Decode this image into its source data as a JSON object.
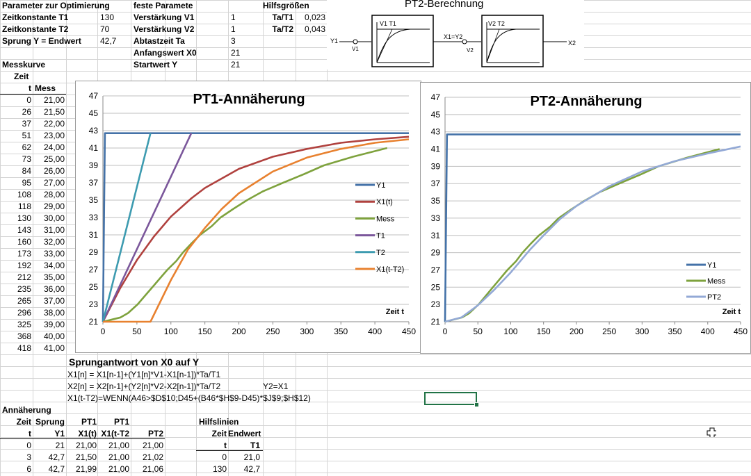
{
  "top": {
    "param_header": "Parameter zur Optimierung",
    "fixed_header": "feste Paramete",
    "help_header": "Hilfsgrößen",
    "params": [
      {
        "label": "Zeitkonstante T1",
        "value": "130"
      },
      {
        "label": "Zeitkonstante T2",
        "value": "70"
      },
      {
        "label": "Sprung Y = Endwert",
        "value": "42,7"
      }
    ],
    "fixed": [
      {
        "label": "Verstärkung V1",
        "value": "1"
      },
      {
        "label": "Verstärkung V2",
        "value": "1"
      },
      {
        "label": "Abtastzeit Ta",
        "value": "3"
      },
      {
        "label": "Anfangswert X0",
        "value": "21"
      },
      {
        "label": "Startwert Y",
        "value": "21"
      }
    ],
    "help": [
      {
        "label": "Ta/T1",
        "value": "0,023"
      },
      {
        "label": "Ta/T2",
        "value": "0,043"
      }
    ]
  },
  "diagram": {
    "title": "PT2-Berechnung",
    "in_label": "Y1",
    "v1_label": "V1",
    "block1_label": "V1  T1",
    "mid_label": "X1=Y2",
    "v2_label": "V2",
    "block2_label": "V2  T2",
    "out_label": "X2"
  },
  "messkurve": {
    "title": "Messkurve",
    "col_time_head1": "Zeit",
    "col_time_head2": "t",
    "col_mess_head": "Mess",
    "rows": [
      {
        "t": "0",
        "v": "21,00"
      },
      {
        "t": "26",
        "v": "21,50"
      },
      {
        "t": "37",
        "v": "22,00"
      },
      {
        "t": "51",
        "v": "23,00"
      },
      {
        "t": "62",
        "v": "24,00"
      },
      {
        "t": "73",
        "v": "25,00"
      },
      {
        "t": "84",
        "v": "26,00"
      },
      {
        "t": "95",
        "v": "27,00"
      },
      {
        "t": "108",
        "v": "28,00"
      },
      {
        "t": "118",
        "v": "29,00"
      },
      {
        "t": "130",
        "v": "30,00"
      },
      {
        "t": "143",
        "v": "31,00"
      },
      {
        "t": "160",
        "v": "32,00"
      },
      {
        "t": "173",
        "v": "33,00"
      },
      {
        "t": "192",
        "v": "34,00"
      },
      {
        "t": "212",
        "v": "35,00"
      },
      {
        "t": "235",
        "v": "36,00"
      },
      {
        "t": "265",
        "v": "37,00"
      },
      {
        "t": "296",
        "v": "38,00"
      },
      {
        "t": "325",
        "v": "39,00"
      },
      {
        "t": "368",
        "v": "40,00"
      },
      {
        "t": "418",
        "v": "41,00"
      }
    ]
  },
  "formulas": {
    "title": "Sprungantwort von X0 auf Y",
    "line1": "X1[n] = X1[n-1]+(Y1[n]*V1-X1[n-1])*Ta/T1",
    "line2": "X2[n] = X2[n-1]+(Y2[n]*V2-X2[n-1])*Ta/T2",
    "line2_note": "Y2=X1",
    "line3": "X1(t-T2)=WENN(A46>$D$10;D45+(B46*$H$9-D45)*$J$9;$H$12)"
  },
  "annaeherung": {
    "title": "Annäherung",
    "head1": [
      "Zeit",
      "Sprung",
      "PT1",
      "PT1",
      ""
    ],
    "head2": [
      "t",
      "Y1",
      "X1(t)",
      "X1(t-T2",
      "PT2"
    ],
    "rows": [
      [
        "0",
        "21",
        "21,00",
        "21,00",
        "21,00"
      ],
      [
        "3",
        "42,7",
        "21,50",
        "21,00",
        "21,02"
      ],
      [
        "6",
        "42,7",
        "21,99",
        "21,00",
        "21,06"
      ]
    ]
  },
  "hilfslinien": {
    "title": "Hilfslinien",
    "head1": [
      "Zeit",
      "Endwert"
    ],
    "head2": [
      "t",
      "T1"
    ],
    "rows": [
      [
        "0",
        "21,0"
      ],
      [
        "130",
        "42,7"
      ]
    ]
  },
  "colors": {
    "y1": "#4472a8",
    "x1": "#b0413e",
    "mess": "#7ea23d",
    "t1": "#7b579b",
    "t2": "#3d9bb0",
    "x1t2": "#e8812f",
    "pt2": "#93a9d6",
    "selection": "#217346"
  },
  "chart_data": [
    {
      "type": "line",
      "title": "PT1-Annäherung",
      "xlabel": "Zeit t",
      "ylabel": "",
      "xlim": [
        0,
        450
      ],
      "ylim": [
        21,
        47
      ],
      "xticks": [
        0,
        50,
        100,
        150,
        200,
        250,
        300,
        350,
        400,
        450
      ],
      "yticks": [
        21,
        23,
        25,
        27,
        29,
        31,
        33,
        35,
        37,
        39,
        41,
        43,
        45,
        47
      ],
      "legend_position": "right",
      "series": [
        {
          "name": "Y1",
          "color": "#4472a8",
          "points": [
            [
              0,
              21
            ],
            [
              3,
              42.7
            ],
            [
              450,
              42.7
            ]
          ]
        },
        {
          "name": "X1(t)",
          "color": "#b0413e",
          "points": [
            [
              0,
              21
            ],
            [
              25,
              24.8
            ],
            [
              50,
              28.1
            ],
            [
              75,
              30.8
            ],
            [
              100,
              33.1
            ],
            [
              130,
              35.2
            ],
            [
              150,
              36.4
            ],
            [
              200,
              38.6
            ],
            [
              250,
              40.0
            ],
            [
              300,
              40.9
            ],
            [
              350,
              41.6
            ],
            [
              400,
              42.0
            ],
            [
              450,
              42.3
            ]
          ]
        },
        {
          "name": "Mess",
          "color": "#7ea23d",
          "points": [
            [
              0,
              21
            ],
            [
              26,
              21.5
            ],
            [
              37,
              22
            ],
            [
              51,
              23
            ],
            [
              62,
              24
            ],
            [
              73,
              25
            ],
            [
              84,
              26
            ],
            [
              95,
              27
            ],
            [
              108,
              28
            ],
            [
              118,
              29
            ],
            [
              130,
              30
            ],
            [
              143,
              31
            ],
            [
              160,
              32
            ],
            [
              173,
              33
            ],
            [
              192,
              34
            ],
            [
              212,
              35
            ],
            [
              235,
              36
            ],
            [
              265,
              37
            ],
            [
              296,
              38
            ],
            [
              325,
              39
            ],
            [
              368,
              40
            ],
            [
              418,
              41
            ]
          ]
        },
        {
          "name": "T1",
          "color": "#7b579b",
          "points": [
            [
              0,
              21
            ],
            [
              130,
              42.7
            ]
          ]
        },
        {
          "name": "T2",
          "color": "#3d9bb0",
          "points": [
            [
              0,
              21
            ],
            [
              70,
              42.7
            ]
          ]
        },
        {
          "name": "X1(t-T2)",
          "color": "#e8812f",
          "points": [
            [
              0,
              21
            ],
            [
              70,
              21
            ],
            [
              100,
              25.8
            ],
            [
              125,
              29.3
            ],
            [
              150,
              31.8
            ],
            [
              175,
              34.0
            ],
            [
              200,
              35.8
            ],
            [
              250,
              38.3
            ],
            [
              300,
              39.9
            ],
            [
              350,
              40.9
            ],
            [
              400,
              41.6
            ],
            [
              450,
              42.0
            ]
          ]
        }
      ]
    },
    {
      "type": "line",
      "title": "PT2-Annäherung",
      "xlabel": "Zeit t",
      "ylabel": "",
      "xlim": [
        0,
        450
      ],
      "ylim": [
        21,
        47
      ],
      "xticks": [
        0,
        50,
        100,
        150,
        200,
        250,
        300,
        350,
        400,
        450
      ],
      "yticks": [
        21,
        23,
        25,
        27,
        29,
        31,
        33,
        35,
        37,
        39,
        41,
        43,
        45,
        47
      ],
      "legend_position": "right",
      "series": [
        {
          "name": "Y1",
          "color": "#4472a8",
          "points": [
            [
              0,
              21
            ],
            [
              3,
              42.7
            ],
            [
              450,
              42.7
            ]
          ]
        },
        {
          "name": "Mess",
          "color": "#7ea23d",
          "points": [
            [
              0,
              21
            ],
            [
              26,
              21.5
            ],
            [
              37,
              22
            ],
            [
              51,
              23
            ],
            [
              62,
              24
            ],
            [
              73,
              25
            ],
            [
              84,
              26
            ],
            [
              95,
              27
            ],
            [
              108,
              28
            ],
            [
              118,
              29
            ],
            [
              130,
              30
            ],
            [
              143,
              31
            ],
            [
              160,
              32
            ],
            [
              173,
              33
            ],
            [
              192,
              34
            ],
            [
              212,
              35
            ],
            [
              235,
              36
            ],
            [
              265,
              37
            ],
            [
              296,
              38
            ],
            [
              325,
              39
            ],
            [
              368,
              40
            ],
            [
              418,
              41
            ]
          ]
        },
        {
          "name": "PT2",
          "color": "#93a9d6",
          "points": [
            [
              0,
              21
            ],
            [
              25,
              21.5
            ],
            [
              50,
              22.9
            ],
            [
              75,
              24.7
            ],
            [
              100,
              26.7
            ],
            [
              130,
              29.4
            ],
            [
              150,
              31.0
            ],
            [
              175,
              32.9
            ],
            [
              200,
              34.4
            ],
            [
              250,
              36.7
            ],
            [
              300,
              38.4
            ],
            [
              350,
              39.6
            ],
            [
              400,
              40.5
            ],
            [
              450,
              41.3
            ]
          ]
        }
      ]
    }
  ]
}
